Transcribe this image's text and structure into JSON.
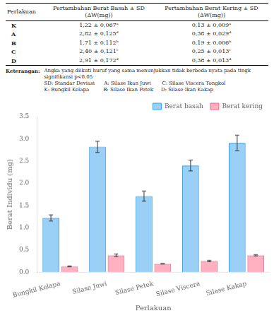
{
  "chart_data": {
    "type": "bar",
    "categories": [
      "Bungkil Kelapa",
      "Silase Juwi",
      "Silase Petek",
      "Silase Viscera",
      "Silase Kakap"
    ],
    "series": [
      {
        "name": "Berat basah",
        "values": [
          1.22,
          2.82,
          1.71,
          2.4,
          2.91
        ],
        "error": [
          0.067,
          0.125,
          0.112,
          0.121,
          0.172
        ]
      },
      {
        "name": "Berat kering",
        "values": [
          0.13,
          0.38,
          0.19,
          0.25,
          0.38
        ],
        "error": [
          0.009,
          0.029,
          0.006,
          0.013,
          0.013
        ]
      }
    ],
    "xlabel": "Perlakuan",
    "ylabel": "Berat Individu (mg)",
    "ylim": [
      0,
      3.5
    ],
    "yticks": [
      {
        "value": 0,
        "label": "0.0"
      },
      0.5,
      {
        "value": 1,
        "label": "1.0"
      },
      1.5,
      {
        "value": 2,
        "label": "2.0"
      },
      2.5,
      {
        "value": 3,
        "label": "3.0"
      },
      3.5
    ],
    "grid": false,
    "legend": "upper right",
    "table": {
      "columns": [
        [
          "Perlakuan"
        ],
        [
          "Pertambahan Berat Basah ± SD",
          "(ΔW(mg))"
        ],
        [
          "Pertambahan Berat Kering ± SD",
          "(ΔW(mg))"
        ]
      ],
      "rows": [
        [
          "K",
          "1,22 ± 0,067ᵃ",
          "0,13 ± 0,009ᵃ"
        ],
        [
          "A",
          "2,82 ± 0,125ᵈ",
          "0,38 ± 0,029ᵈ"
        ],
        [
          "B",
          "1,71 ± 0,112ᵇ",
          "0,19 ± 0,006ᵇ"
        ],
        [
          "C",
          "2,40 ± 0,121ᶜ",
          "0,25 ± 0,013ᶜ"
        ],
        [
          "D",
          "2,91 ± 0,172ᵈ",
          "0,38 ± 0,013ᵈ"
        ]
      ]
    },
    "annotations": [
      "Keterangan:",
      "Angka yang diikuti huruf yang sama menunjukkan tidak berbeda nyata pada tingk",
      "signifikansi p<0.05",
      "SD: Standar Deviasi      A: Silase Ikan Juwi       C: Silase Viscera Tongkol",
      "K: Bungkil Kelapa         B: Silase Ikan Petek     D: Silase Ikan Kakap"
    ]
  }
}
